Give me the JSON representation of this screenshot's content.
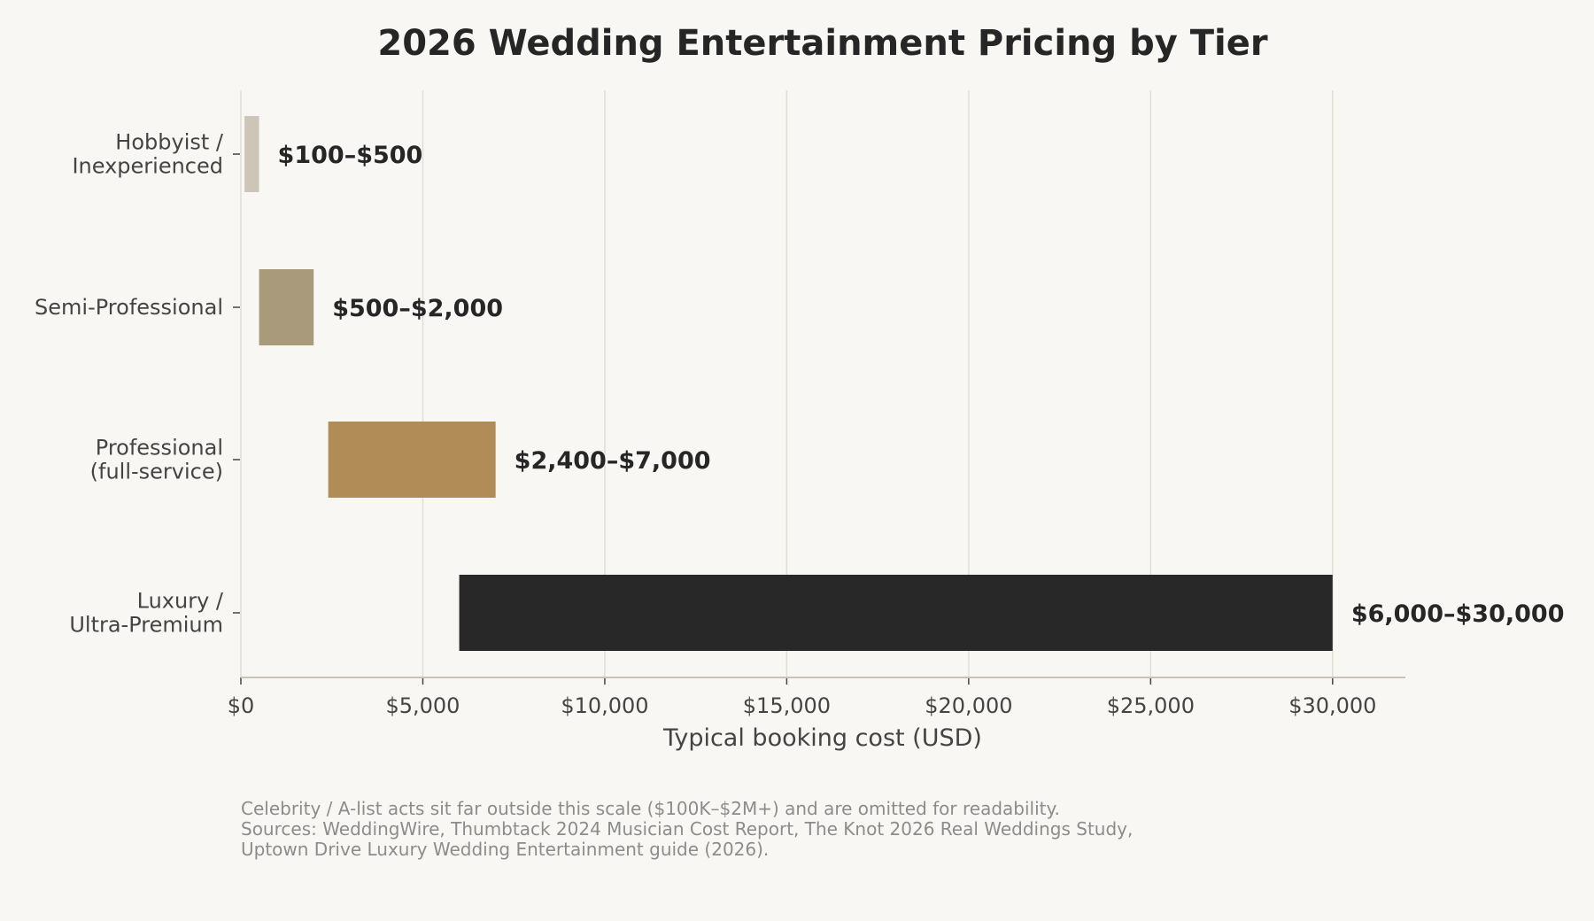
{
  "chart_data": {
    "type": "bar",
    "orientation": "horizontal",
    "title": "2026 Wedding Entertainment Pricing by Tier",
    "xlabel": "Typical booking cost (USD)",
    "ylabel": "",
    "xlim": [
      0,
      32000
    ],
    "grid": "vertical",
    "categories": [
      [
        "Hobbyist /",
        "Inexperienced"
      ],
      [
        "Semi-Professional"
      ],
      [
        "Professional",
        "(full-service)"
      ],
      [
        "Luxury /",
        "Ultra-Premium"
      ]
    ],
    "ranges": [
      {
        "low": 100,
        "high": 500,
        "label": "$100–$500",
        "color": "#cdc5b8"
      },
      {
        "low": 500,
        "high": 2000,
        "label": "$500–$2,000",
        "color": "#a99a7c"
      },
      {
        "low": 2400,
        "high": 7000,
        "label": "$2,400–$7,000",
        "color": "#b08d57"
      },
      {
        "low": 6000,
        "high": 30000,
        "label": "$6,000–$30,000",
        "color": "#282828"
      }
    ],
    "x_ticks": [
      {
        "value": 0,
        "label": "$0"
      },
      {
        "value": 5000,
        "label": "$5,000"
      },
      {
        "value": 10000,
        "label": "$10,000"
      },
      {
        "value": 15000,
        "label": "$15,000"
      },
      {
        "value": 20000,
        "label": "$20,000"
      },
      {
        "value": 25000,
        "label": "$25,000"
      },
      {
        "value": 30000,
        "label": "$30,000"
      }
    ],
    "footnote": [
      "Celebrity / A-list acts sit far outside this scale ($100K–$2M+) and are omitted for readability.",
      "Sources: WeddingWire, Thumbtack 2024 Musician Cost Report, The Knot 2026 Real Weddings Study,",
      "Uptown Drive Luxury Wedding Entertainment guide (2026)."
    ],
    "colors": {
      "background": "#f8f7f3",
      "grid": "#e3ddd2",
      "axis": "#c9c2b6",
      "text": "#444444",
      "title": "#262626",
      "footnote": "#8c8c8c"
    }
  }
}
